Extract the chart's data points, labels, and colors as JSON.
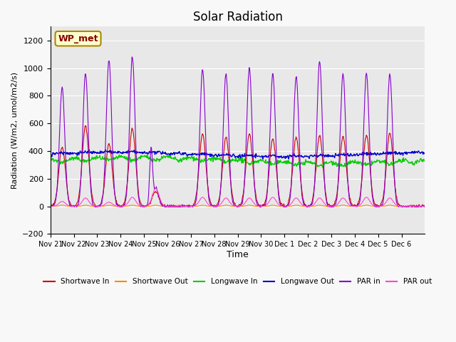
{
  "title": "Solar Radiation",
  "xlabel": "Time",
  "ylabel": "Radiation (W/m2, umol/m2/s)",
  "ylim": [
    -200,
    1300
  ],
  "yticks": [
    -200,
    0,
    200,
    400,
    600,
    800,
    1000,
    1200
  ],
  "x_labels": [
    "Nov 21",
    "Nov 22",
    "Nov 23",
    "Nov 24",
    "Nov 25",
    "Nov 26",
    "Nov 27",
    "Nov 28",
    "Nov 29",
    "Nov 30",
    "Dec 1",
    "Dec 2",
    "Dec 3",
    "Dec 4",
    "Dec 5",
    "Dec 6"
  ],
  "annotation": "WP_met",
  "legend": [
    {
      "label": "Shortwave In",
      "color": "#cc0000"
    },
    {
      "label": "Shortwave Out",
      "color": "#ff8800"
    },
    {
      "label": "Longwave In",
      "color": "#00cc00"
    },
    {
      "label": "Longwave Out",
      "color": "#0000cc"
    },
    {
      "label": "PAR in",
      "color": "#8800cc"
    },
    {
      "label": "PAR out",
      "color": "#ff44cc"
    }
  ],
  "num_days": 16
}
